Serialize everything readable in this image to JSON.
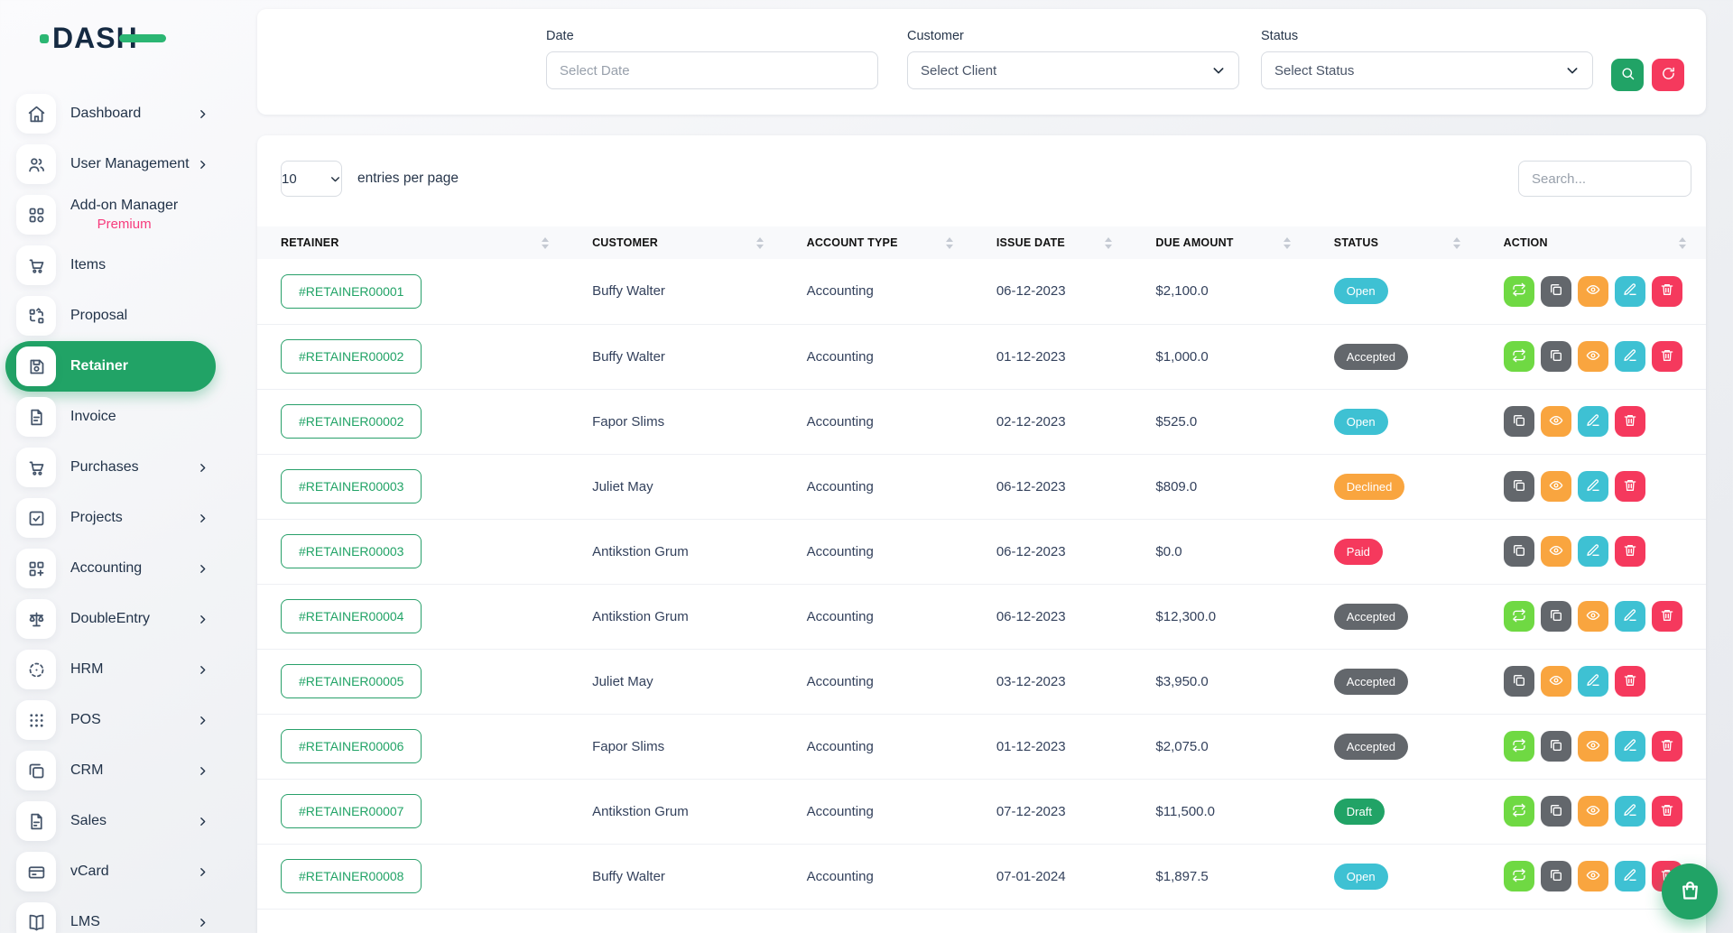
{
  "brand": {
    "logo_text": "DASH"
  },
  "colors": {
    "accent_green": "#21a366",
    "logo_green": "#2bb673",
    "premium_pink": "#f73b7c",
    "status": {
      "Open": "#3ec1d3",
      "Accepted": "#63676c",
      "Declined": "#f9a53f",
      "Paid": "#f5395d",
      "Draft": "#21a366"
    },
    "actions": {
      "convert": "#6fd943",
      "copy": "#63676c",
      "eye": "#f9a53f",
      "edit": "#3ec1d3",
      "delete": "#f5395d"
    }
  },
  "icons": {
    "search": "search-icon",
    "refresh": "refresh-icon",
    "chevron_down": "chevron-down-icon",
    "bag": "bag-icon"
  },
  "sidebar": {
    "items": [
      {
        "id": "dashboard",
        "label": "Dashboard",
        "icon": "home-icon",
        "chevron": true,
        "active": false
      },
      {
        "id": "user-management",
        "label": "User Management",
        "icon": "users-icon",
        "chevron": true,
        "active": false
      },
      {
        "id": "add-on-manager",
        "label": "Add-on Manager",
        "sublabel": "Premium",
        "icon": "addon-icon",
        "chevron": false,
        "active": false
      },
      {
        "id": "items",
        "label": "Items",
        "icon": "cart-icon",
        "chevron": false,
        "active": false
      },
      {
        "id": "proposal",
        "label": "Proposal",
        "icon": "proposal-icon",
        "chevron": false,
        "active": false
      },
      {
        "id": "retainer",
        "label": "Retainer",
        "icon": "save-icon",
        "chevron": false,
        "active": true
      },
      {
        "id": "invoice",
        "label": "Invoice",
        "icon": "invoice-icon",
        "chevron": false,
        "active": false
      },
      {
        "id": "purchases",
        "label": "Purchases",
        "icon": "cart-icon",
        "chevron": true,
        "active": false
      },
      {
        "id": "projects",
        "label": "Projects",
        "icon": "check-square-icon",
        "chevron": true,
        "active": false
      },
      {
        "id": "accounting",
        "label": "Accounting",
        "icon": "grid-plus-icon",
        "chevron": true,
        "active": false
      },
      {
        "id": "doubleentry",
        "label": "DoubleEntry",
        "icon": "scale-icon",
        "chevron": true,
        "active": false
      },
      {
        "id": "hrm",
        "label": "HRM",
        "icon": "circle-dashed-icon",
        "chevron": true,
        "active": false
      },
      {
        "id": "pos",
        "label": "POS",
        "icon": "dots-grid-icon",
        "chevron": true,
        "active": false
      },
      {
        "id": "crm",
        "label": "CRM",
        "icon": "copy-icon",
        "chevron": true,
        "active": false
      },
      {
        "id": "sales",
        "label": "Sales",
        "icon": "file-icon",
        "chevron": true,
        "active": false
      },
      {
        "id": "vcard",
        "label": "vCard",
        "icon": "credit-card-icon",
        "chevron": true,
        "active": false
      },
      {
        "id": "lms",
        "label": "LMS",
        "icon": "book-icon",
        "chevron": true,
        "active": false
      }
    ]
  },
  "filters": {
    "date": {
      "label": "Date",
      "placeholder": "Select Date"
    },
    "customer": {
      "label": "Customer",
      "value": "Select Client"
    },
    "status": {
      "label": "Status",
      "value": "Select Status"
    }
  },
  "table_card": {
    "entries_value": "10",
    "entries_suffix": "entries per page",
    "search_placeholder": "Search...",
    "columns": [
      "RETAINER",
      "CUSTOMER",
      "ACCOUNT TYPE",
      "ISSUE DATE",
      "DUE AMOUNT",
      "STATUS",
      "ACTION"
    ],
    "rows": [
      {
        "retainer": "#RETAINER00001",
        "customer": "Buffy Walter",
        "account_type": "Accounting",
        "issue_date": "06-12-2023",
        "due_amount": "$2,100.0",
        "status": "Open",
        "actions": [
          "convert",
          "copy",
          "eye",
          "edit",
          "delete"
        ]
      },
      {
        "retainer": "#RETAINER00002",
        "customer": "Buffy Walter",
        "account_type": "Accounting",
        "issue_date": "01-12-2023",
        "due_amount": "$1,000.0",
        "status": "Accepted",
        "actions": [
          "convert",
          "copy",
          "eye",
          "edit",
          "delete"
        ]
      },
      {
        "retainer": "#RETAINER00002",
        "customer": "Fapor Slims",
        "account_type": "Accounting",
        "issue_date": "02-12-2023",
        "due_amount": "$525.0",
        "status": "Open",
        "actions": [
          "copy",
          "eye",
          "edit",
          "delete"
        ]
      },
      {
        "retainer": "#RETAINER00003",
        "customer": "Juliet May",
        "account_type": "Accounting",
        "issue_date": "06-12-2023",
        "due_amount": "$809.0",
        "status": "Declined",
        "actions": [
          "copy",
          "eye",
          "edit",
          "delete"
        ]
      },
      {
        "retainer": "#RETAINER00003",
        "customer": "Antikstion Grum",
        "account_type": "Accounting",
        "issue_date": "06-12-2023",
        "due_amount": "$0.0",
        "status": "Paid",
        "actions": [
          "copy",
          "eye",
          "edit",
          "delete"
        ]
      },
      {
        "retainer": "#RETAINER00004",
        "customer": "Antikstion Grum",
        "account_type": "Accounting",
        "issue_date": "06-12-2023",
        "due_amount": "$12,300.0",
        "status": "Accepted",
        "actions": [
          "convert",
          "copy",
          "eye",
          "edit",
          "delete"
        ]
      },
      {
        "retainer": "#RETAINER00005",
        "customer": "Juliet May",
        "account_type": "Accounting",
        "issue_date": "03-12-2023",
        "due_amount": "$3,950.0",
        "status": "Accepted",
        "actions": [
          "copy",
          "eye",
          "edit",
          "delete"
        ]
      },
      {
        "retainer": "#RETAINER00006",
        "customer": "Fapor Slims",
        "account_type": "Accounting",
        "issue_date": "01-12-2023",
        "due_amount": "$2,075.0",
        "status": "Accepted",
        "actions": [
          "convert",
          "copy",
          "eye",
          "edit",
          "delete"
        ]
      },
      {
        "retainer": "#RETAINER00007",
        "customer": "Antikstion Grum",
        "account_type": "Accounting",
        "issue_date": "07-12-2023",
        "due_amount": "$11,500.0",
        "status": "Draft",
        "actions": [
          "convert",
          "copy",
          "eye",
          "edit",
          "delete"
        ]
      },
      {
        "retainer": "#RETAINER00008",
        "customer": "Buffy Walter",
        "account_type": "Accounting",
        "issue_date": "07-01-2024",
        "due_amount": "$1,897.5",
        "status": "Open",
        "actions": [
          "convert",
          "copy",
          "eye",
          "edit",
          "delete"
        ]
      }
    ]
  }
}
